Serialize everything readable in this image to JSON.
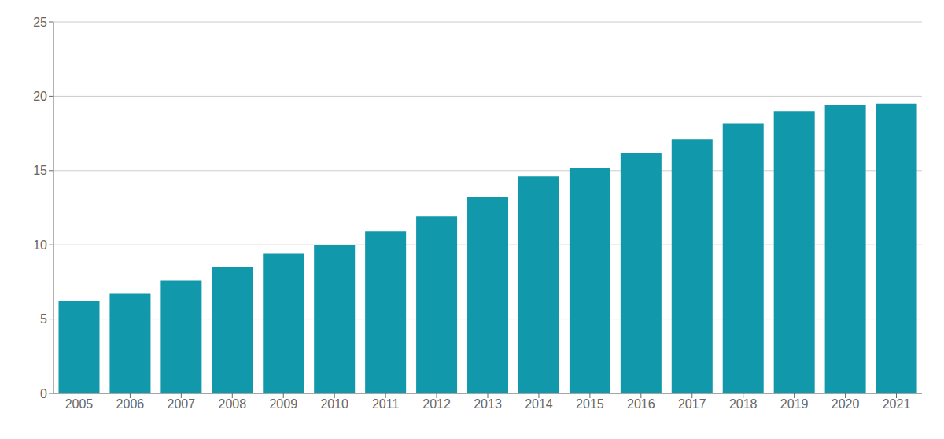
{
  "chart_data": {
    "type": "bar",
    "categories": [
      "2005",
      "2006",
      "2007",
      "2008",
      "2009",
      "2010",
      "2011",
      "2012",
      "2013",
      "2014",
      "2015",
      "2016",
      "2017",
      "2018",
      "2019",
      "2020",
      "2021"
    ],
    "values": [
      6.2,
      6.7,
      7.6,
      8.5,
      9.4,
      10.0,
      10.9,
      11.9,
      13.2,
      14.6,
      15.2,
      16.2,
      17.1,
      18.2,
      19.0,
      19.4,
      19.5
    ],
    "color": "#1198AA",
    "ylim": [
      0,
      25
    ],
    "yticks": [
      0,
      5,
      10,
      15,
      20,
      25
    ],
    "grid": true
  }
}
